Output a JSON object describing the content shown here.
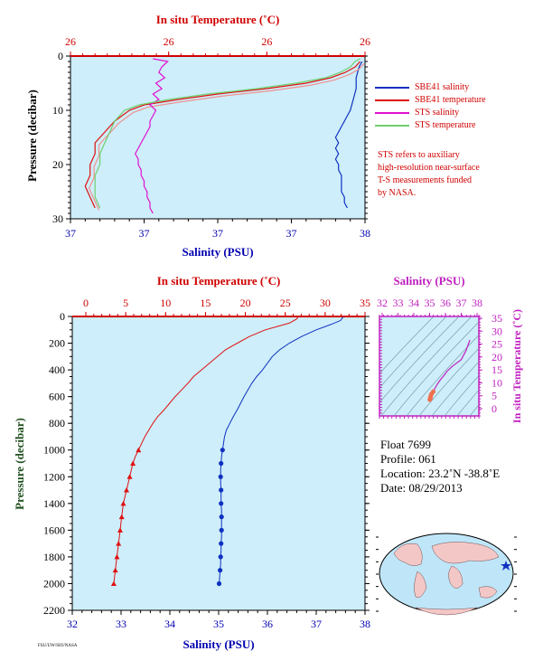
{
  "colors": {
    "plot_bg": "#cdeefa",
    "sbe_salinity": "#1030c0",
    "sbe_temperature": "#e01010",
    "sts_salinity": "#e010d0",
    "sts_temperature": "#70d070",
    "sts_temperature_alt": "#f09090",
    "axis_temp": "#d00000",
    "axis_sal": "#0000b0",
    "axis_pres": "#205020",
    "ts_axis": "#c020c0"
  },
  "top_panel": {
    "temp_axis_title": "In situ Temperature (˚C)",
    "temp_tick_labels": [
      "26",
      "26",
      "26",
      "26"
    ],
    "sal_axis_title": "Salinity (PSU)",
    "sal_tick_labels": [
      "37",
      "37",
      "37",
      "37",
      "38"
    ],
    "pressure_axis_title": "Pressure (decibar)",
    "pressure_tick_labels": [
      "0",
      "10",
      "20",
      "30"
    ]
  },
  "legend": {
    "items": [
      {
        "label": "SBE41 salinity",
        "color_key": "sbe_salinity"
      },
      {
        "label": "SBE41 temperature",
        "color_key": "sbe_temperature"
      },
      {
        "label": "STS salinity",
        "color_key": "sts_salinity"
      },
      {
        "label": "STS temperature",
        "color_key": "sts_temperature"
      }
    ],
    "note_lines": [
      "STS refers to auxiliary",
      "high-resolution near-surface",
      "T-S measurements funded",
      "by NASA."
    ]
  },
  "main_panel": {
    "temp_axis_title": "In situ Temperature (˚C)",
    "temp_tick_labels": [
      "0",
      "5",
      "10",
      "15",
      "20",
      "25",
      "30",
      "35"
    ],
    "sal_axis_title": "Salinity (PSU)",
    "sal_tick_labels": [
      "32",
      "33",
      "34",
      "35",
      "36",
      "37",
      "38"
    ],
    "pressure_axis_title": "Pressure (decibar)",
    "pressure_tick_labels": [
      "0",
      "200",
      "400",
      "600",
      "800",
      "1000",
      "1200",
      "1400",
      "1600",
      "1800",
      "2000",
      "2200"
    ]
  },
  "ts_panel": {
    "sal_axis_title": "Salinity (PSU)",
    "sal_tick_labels": [
      "32",
      "33",
      "34",
      "35",
      "36",
      "37",
      "38"
    ],
    "temp_axis_title": "In situ Temperature (˚C)",
    "temp_tick_labels": [
      "0",
      "5",
      "10",
      "15",
      "20",
      "25",
      "30",
      "35"
    ]
  },
  "info": {
    "float": "Float  7699",
    "profile": "Profile:  061",
    "location": "Location:  23.2˚N  -38.8˚E",
    "date": "Date:  08/29/2013"
  },
  "credit_text": "FSU/UW/SIO/NASA",
  "chart_data": [
    {
      "type": "line",
      "panel": "top",
      "xlabel": "Salinity (PSU)",
      "x2label": "In situ Temperature (˚C)",
      "ylabel": "Pressure (decibar)",
      "ylim": [
        30,
        0
      ],
      "sal_lim": [
        37.0,
        38.0
      ],
      "temp_lim": [
        26.0,
        26.6
      ],
      "series": [
        {
          "name": "SBE41 salinity",
          "axis": "sal",
          "pressure": [
            1,
            2,
            4,
            6,
            8,
            10,
            11,
            12,
            13,
            14,
            15,
            16,
            17,
            18,
            19,
            20,
            21,
            22,
            23,
            24,
            25,
            26,
            27,
            28
          ],
          "values": [
            37.99,
            37.98,
            37.97,
            37.97,
            37.96,
            37.95,
            37.94,
            37.93,
            37.92,
            37.91,
            37.9,
            37.91,
            37.9,
            37.91,
            37.9,
            37.91,
            37.91,
            37.92,
            37.92,
            37.92,
            37.92,
            37.93,
            37.93,
            37.94
          ]
        },
        {
          "name": "SBE41 temperature",
          "axis": "temp",
          "pressure": [
            1,
            2,
            3,
            4,
            5,
            6,
            7,
            8,
            9,
            10,
            12,
            14,
            15,
            16,
            18,
            20,
            22,
            24,
            26,
            28
          ],
          "values": [
            26.59,
            26.58,
            26.56,
            26.53,
            26.48,
            26.4,
            26.3,
            26.22,
            26.15,
            26.12,
            26.09,
            26.07,
            26.06,
            26.05,
            26.05,
            26.04,
            26.04,
            26.03,
            26.04,
            26.05
          ]
        },
        {
          "name": "STS salinity",
          "axis": "sal",
          "pressure": [
            0.5,
            1,
            2,
            3,
            4,
            5,
            6,
            7,
            8,
            9,
            10,
            11,
            12,
            13,
            14,
            15,
            16,
            17,
            18,
            19,
            20,
            21,
            22,
            23,
            24,
            25,
            26,
            27,
            28,
            29
          ],
          "values": [
            37.28,
            37.33,
            37.31,
            37.3,
            37.32,
            37.29,
            37.31,
            37.28,
            37.3,
            37.27,
            37.29,
            37.28,
            37.27,
            37.27,
            37.26,
            37.25,
            37.24,
            37.23,
            37.22,
            37.23,
            37.23,
            37.24,
            37.24,
            37.25,
            37.25,
            37.26,
            37.26,
            37.27,
            37.27,
            37.28
          ]
        },
        {
          "name": "STS temperature",
          "axis": "temp",
          "pressure": [
            0.5,
            1,
            2,
            3,
            4,
            5,
            6,
            7,
            8,
            9,
            10,
            12,
            14,
            16,
            18,
            20,
            22,
            24,
            26,
            28
          ],
          "values": [
            26.59,
            26.58,
            26.57,
            26.55,
            26.52,
            26.46,
            26.38,
            26.28,
            26.2,
            26.14,
            26.11,
            26.09,
            26.08,
            26.07,
            26.06,
            26.06,
            26.05,
            26.05,
            26.05,
            26.06
          ]
        }
      ]
    },
    {
      "type": "line",
      "panel": "main",
      "xlabel": "Salinity (PSU)",
      "x2label": "In situ Temperature (˚C)",
      "ylabel": "Pressure (decibar)",
      "ylim": [
        2200,
        0
      ],
      "sal_lim": [
        32,
        38
      ],
      "temp_lim": [
        0,
        35
      ],
      "series": [
        {
          "name": "SBE41 salinity",
          "axis": "sal",
          "pressure": [
            5,
            30,
            60,
            100,
            150,
            200,
            250,
            300,
            350,
            400,
            450,
            500,
            550,
            600,
            650,
            700,
            750,
            800,
            850,
            900,
            950,
            1000,
            1050,
            1100,
            1150,
            1200,
            1250,
            1300,
            1350,
            1400,
            1450,
            1500,
            1550,
            1600,
            1650,
            1700,
            1750,
            1800,
            1850,
            1900,
            1950,
            2000
          ],
          "values": [
            37.55,
            37.5,
            37.3,
            37.0,
            36.7,
            36.45,
            36.25,
            36.1,
            36.0,
            35.9,
            35.78,
            35.68,
            35.6,
            35.52,
            35.45,
            35.38,
            35.3,
            35.23,
            35.16,
            35.12,
            35.1,
            35.08,
            35.06,
            35.05,
            35.04,
            35.04,
            35.04,
            35.05,
            35.05,
            35.05,
            35.06,
            35.06,
            35.06,
            35.06,
            35.06,
            35.05,
            35.05,
            35.04,
            35.04,
            35.03,
            35.02,
            35.01
          ],
          "markers_from": 1000
        },
        {
          "name": "SBE41 temperature",
          "axis": "temp",
          "pressure": [
            5,
            20,
            50,
            100,
            150,
            200,
            250,
            300,
            350,
            400,
            450,
            500,
            550,
            600,
            650,
            700,
            750,
            800,
            850,
            900,
            950,
            1000,
            1050,
            1100,
            1150,
            1200,
            1250,
            1300,
            1350,
            1400,
            1450,
            1500,
            1550,
            1600,
            1650,
            1700,
            1750,
            1800,
            1850,
            1900,
            1950,
            2000
          ],
          "values": [
            26.6,
            26.4,
            25.5,
            22.5,
            20.5,
            19.0,
            17.5,
            16.5,
            15.5,
            14.5,
            13.5,
            12.8,
            12.0,
            11.2,
            10.5,
            9.8,
            9.0,
            8.4,
            7.9,
            7.4,
            7.0,
            6.6,
            6.2,
            5.9,
            5.7,
            5.5,
            5.3,
            5.1,
            4.9,
            4.7,
            4.6,
            4.5,
            4.4,
            4.3,
            4.2,
            4.1,
            4.0,
            3.9,
            3.8,
            3.7,
            3.6,
            3.5
          ],
          "markers_from": 1000
        }
      ]
    },
    {
      "type": "scatter",
      "panel": "ts",
      "xlabel": "Salinity (PSU)",
      "ylabel": "In situ Temperature (˚C)",
      "xlim": [
        32,
        38
      ],
      "ylim": [
        0,
        35
      ],
      "series": [
        {
          "name": "T-S profile",
          "x": [
            35.01,
            35.02,
            35.04,
            35.05,
            35.06,
            35.08,
            35.12,
            35.23,
            35.38,
            35.52,
            35.68,
            35.9,
            36.1,
            36.45,
            37.0,
            37.3,
            37.55
          ],
          "y": [
            3.5,
            3.7,
            4.0,
            4.3,
            4.6,
            5.1,
            5.7,
            6.6,
            8.4,
            9.8,
            11.2,
            12.8,
            14.5,
            16.5,
            19.0,
            22.5,
            26.6
          ]
        }
      ]
    }
  ]
}
